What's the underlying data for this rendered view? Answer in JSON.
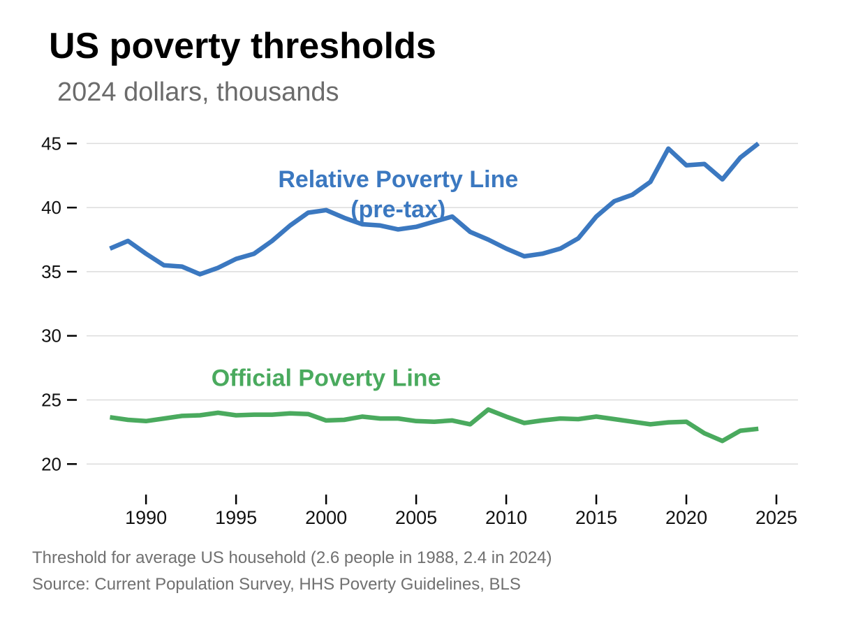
{
  "header": {
    "title": "US poverty thresholds",
    "subtitle": "2024 dollars, thousands"
  },
  "footer": {
    "note": "Threshold for average US household (2.6 people in 1988, 2.4 in 2024)",
    "source": "Source: Current Population Survey, HHS Poverty Guidelines, BLS"
  },
  "chart_data": {
    "type": "line",
    "title": "US poverty thresholds",
    "subtitle": "2024 dollars, thousands",
    "xlabel": "",
    "ylabel": "",
    "xlim": [
      1986.7,
      2026.2
    ],
    "ylim": [
      18,
      46
    ],
    "x_ticks": [
      1990,
      1995,
      2000,
      2005,
      2010,
      2015,
      2020,
      2025
    ],
    "y_ticks": [
      20,
      25,
      30,
      35,
      40,
      45
    ],
    "grid": true,
    "legend": "none (direct labels on lines)",
    "x": [
      1988,
      1989,
      1990,
      1991,
      1992,
      1993,
      1994,
      1995,
      1996,
      1997,
      1998,
      1999,
      2000,
      2001,
      2002,
      2003,
      2004,
      2005,
      2006,
      2007,
      2008,
      2009,
      2010,
      2011,
      2012,
      2013,
      2014,
      2015,
      2016,
      2017,
      2018,
      2019,
      2020,
      2021,
      2022,
      2023,
      2024
    ],
    "series": [
      {
        "name": "Relative Poverty Line (pre-tax)",
        "label_lines": [
          "Relative Poverty Line",
          "(pre-tax)"
        ],
        "label_x": 2004,
        "label_y": 41.6,
        "color": "#3b78c0",
        "values": [
          36.8,
          37.4,
          36.4,
          35.5,
          35.4,
          34.8,
          35.3,
          36.0,
          36.4,
          37.4,
          38.6,
          39.6,
          39.8,
          39.2,
          38.7,
          38.6,
          38.3,
          38.5,
          38.9,
          39.3,
          38.1,
          37.5,
          36.8,
          36.2,
          36.4,
          36.8,
          37.6,
          39.3,
          40.5,
          41.0,
          42.0,
          44.6,
          43.3,
          43.4,
          42.2,
          43.9,
          45.0
        ]
      },
      {
        "name": "Official Poverty Line",
        "label_lines": [
          "Official Poverty Line"
        ],
        "label_x": 2000,
        "label_y": 26.1,
        "color": "#4aaa5e",
        "values": [
          23.65,
          23.45,
          23.35,
          23.55,
          23.75,
          23.8,
          24.0,
          23.8,
          23.85,
          23.85,
          23.95,
          23.9,
          23.4,
          23.45,
          23.7,
          23.55,
          23.55,
          23.35,
          23.3,
          23.4,
          23.1,
          24.25,
          23.7,
          23.2,
          23.4,
          23.55,
          23.5,
          23.7,
          23.5,
          23.3,
          23.1,
          23.25,
          23.3,
          22.4,
          21.8,
          22.6,
          22.75
        ]
      }
    ]
  }
}
